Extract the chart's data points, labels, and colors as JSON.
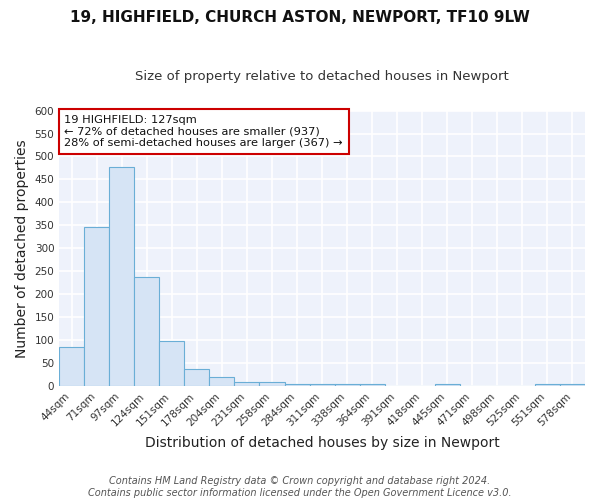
{
  "title1": "19, HIGHFIELD, CHURCH ASTON, NEWPORT, TF10 9LW",
  "title2": "Size of property relative to detached houses in Newport",
  "xlabel": "Distribution of detached houses by size in Newport",
  "ylabel": "Number of detached properties",
  "categories": [
    "44sqm",
    "71sqm",
    "97sqm",
    "124sqm",
    "151sqm",
    "178sqm",
    "204sqm",
    "231sqm",
    "258sqm",
    "284sqm",
    "311sqm",
    "338sqm",
    "364sqm",
    "391sqm",
    "418sqm",
    "445sqm",
    "471sqm",
    "498sqm",
    "525sqm",
    "551sqm",
    "578sqm"
  ],
  "values": [
    85,
    347,
    477,
    237,
    97,
    36,
    19,
    8,
    8,
    5,
    4,
    4,
    5,
    0,
    0,
    5,
    0,
    0,
    0,
    5,
    5
  ],
  "bar_color": "#d6e4f5",
  "bar_edge_color": "#6aaed6",
  "annotation_text": "19 HIGHFIELD: 127sqm\n← 72% of detached houses are smaller (937)\n28% of semi-detached houses are larger (367) →",
  "annotation_box_color": "white",
  "annotation_box_edge": "#cc0000",
  "ylim": [
    0,
    600
  ],
  "yticks": [
    0,
    50,
    100,
    150,
    200,
    250,
    300,
    350,
    400,
    450,
    500,
    550,
    600
  ],
  "footer1": "Contains HM Land Registry data © Crown copyright and database right 2024.",
  "footer2": "Contains public sector information licensed under the Open Government Licence v3.0.",
  "background_color": "#ffffff",
  "plot_bg_color": "#eef2fb",
  "grid_color": "#ffffff",
  "title_fontsize": 11,
  "subtitle_fontsize": 9.5,
  "axis_label_fontsize": 10,
  "tick_fontsize": 7.5,
  "footer_fontsize": 7
}
